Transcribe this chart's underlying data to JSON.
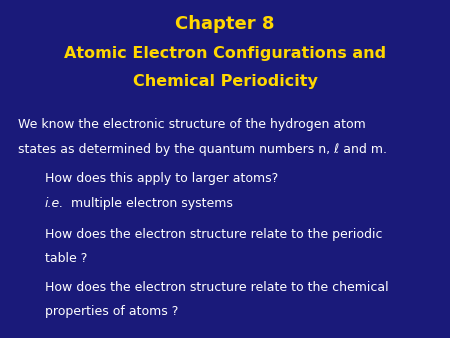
{
  "background_color": "#1a1a7a",
  "title_line1": "Chapter 8",
  "title_line2": "Atomic Electron Configurations and",
  "title_line3": "Chemical Periodicity",
  "title_color": "#ffd700",
  "title_fontsize": 13,
  "subtitle_fontsize": 11.5,
  "body_color": "#ffffff",
  "body_fontsize": 9,
  "line1": "We know the electronic structure of the hydrogen atom",
  "line2": "states as determined by the quantum numbers n, ℓ and m.",
  "bullet1_line1": "How does this apply to larger atoms?",
  "bullet1_line2_italic": "i.e.",
  "bullet1_line2_rest": " multiple electron systems",
  "bullet2_line1": "How does the electron structure relate to the periodic",
  "bullet2_line2": "table ?",
  "bullet3_line1": "How does the electron structure relate to the chemical",
  "bullet3_line2": "properties of atoms ?"
}
